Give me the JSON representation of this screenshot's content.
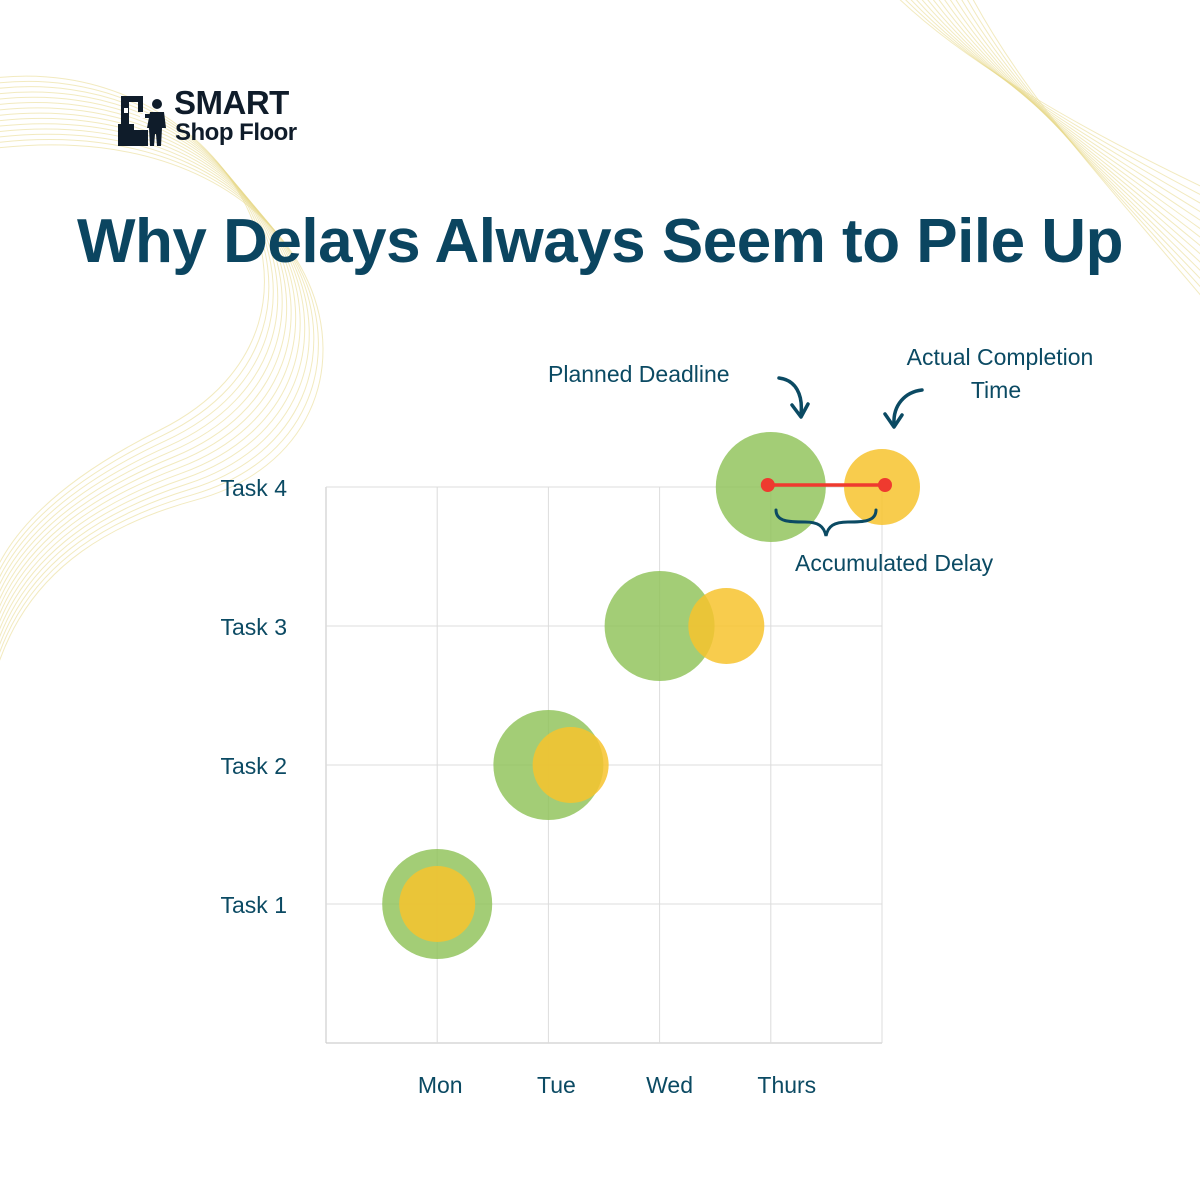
{
  "brand": {
    "name_line1": "SMART",
    "name_line2": "Shop Floor",
    "logo_icon": "factory-worker-icon"
  },
  "headline": "Why Delays Always Seem to Pile Up",
  "annotations": {
    "planned_deadline": "Planned Deadline",
    "actual_completion_line1": "Actual Completion",
    "actual_completion_line2": "Time",
    "accumulated_delay": "Accumulated Delay"
  },
  "colors": {
    "text_primary": "#0b4560",
    "planned_bubble": "#8fc258",
    "actual_bubble": "#f7c32e",
    "delay_line": "#ef3a2f",
    "grid": "#dcdcdc",
    "background_lines": "#e8d98a"
  },
  "chart_data": {
    "type": "scatter",
    "title": "",
    "x_categories": [
      "Mon",
      "Tue",
      "Wed",
      "Thurs"
    ],
    "y_categories": [
      "Task 1",
      "Task 2",
      "Task 3",
      "Task 4"
    ],
    "grid": true,
    "series": [
      {
        "color": "#8fc258",
        "points": [
          {
            "task": "Task 1",
            "x": 1.0
          },
          {
            "task": "Task 2",
            "x": 2.0
          },
          {
            "task": "Task 3",
            "x": 3.0
          },
          {
            "task": "Task 4",
            "x": 4.0
          }
        ]
      },
      {
        "color": "#f7c32e",
        "points": [
          {
            "task": "Task 1",
            "x": 1.0
          },
          {
            "task": "Task 2",
            "x": 2.2
          },
          {
            "task": "Task 3",
            "x": 3.6
          },
          {
            "task": "Task 4",
            "x": 5.0
          }
        ]
      }
    ],
    "delay_marker": {
      "task": "Task 4",
      "from_x": 4.0,
      "to_x": 5.0
    }
  }
}
